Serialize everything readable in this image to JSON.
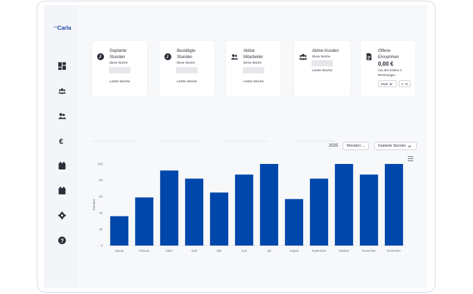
{
  "app": {
    "logo_prefix": "Inq",
    "logo_text": "Carla"
  },
  "sidebar": {
    "items": [
      {
        "name": "dashboard-icon"
      },
      {
        "name": "users-group-icon"
      },
      {
        "name": "user-friends-icon"
      },
      {
        "name": "euro-icon"
      },
      {
        "name": "calendar-icon"
      },
      {
        "name": "calendar-alt-icon"
      },
      {
        "name": "gear-icon"
      },
      {
        "name": "help-icon"
      }
    ]
  },
  "cards": [
    {
      "title_line1": "Geplante",
      "title_line2": "Stunden",
      "subtitle": "Diese Woche",
      "link": "Letzte Woche",
      "icon": "clock-icon"
    },
    {
      "title_line1": "Bestätigte",
      "title_line2": "Stunden",
      "subtitle": "Diese Woche",
      "link": "Letzte Woche",
      "icon": "clock-icon"
    },
    {
      "title_line1": "Aktive",
      "title_line2": "Mitarbeiter",
      "subtitle": "Diese Woche",
      "link": "Letzte Woche",
      "icon": "users-icon"
    },
    {
      "title_line1": "Aktive Kunden",
      "title_line2": "",
      "subtitle": "Diese Woche",
      "link": "Letzte Woche",
      "icon": "users-group-icon"
    },
    {
      "title_line1": "Offene",
      "title_line2": "Einnahmen",
      "value": "0,00 €",
      "note_line1": "Aus den letzten 0",
      "note_line2": "Rechnungen",
      "select1": "Septi",
      "select2": "2",
      "icon": "invoice-icon"
    }
  ],
  "controls": {
    "year": "2025",
    "period_select": "Monat(e)",
    "metric_select": "Geplante Stunden"
  },
  "colors": {
    "bar": "#0047ab",
    "accent": "#1849a9"
  },
  "chart_data": {
    "type": "bar",
    "categories": [
      "Januar",
      "Februar",
      "März",
      "April",
      "Mai",
      "Juni",
      "Juli",
      "August",
      "September",
      "Oktober",
      "November",
      "Dezember"
    ],
    "values": [
      36,
      59,
      92,
      82,
      65,
      87,
      100,
      57,
      82,
      100,
      87,
      100
    ],
    "ylabel": "Stunden",
    "ylim": [
      0,
      100
    ],
    "yticks": [
      "0",
      "20",
      "40",
      "60",
      "80",
      "100"
    ],
    "grid": false
  }
}
